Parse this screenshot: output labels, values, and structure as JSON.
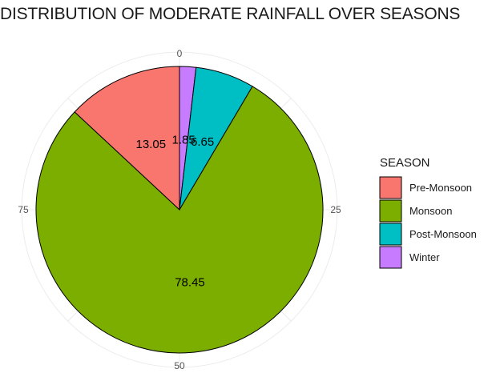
{
  "chart_data": {
    "type": "pie",
    "title": "DISTRIBUTION OF MODERATE RAINFALL OVER SEASONS",
    "categories": [
      "Pre-Monsoon",
      "Monsoon",
      "Post-Monsoon",
      "Winter"
    ],
    "values": [
      13.05,
      78.45,
      6.65,
      1.85
    ],
    "value_labels": [
      "13.05",
      "78.45",
      "6.65",
      "1.85"
    ],
    "colors": [
      "#F8766D",
      "#7CAE00",
      "#00BFC4",
      "#C77CFF"
    ],
    "slice_order_clockwise_from_top": [
      "Winter",
      "Post-Monsoon",
      "Monsoon",
      "Pre-Monsoon"
    ],
    "angular_axis": {
      "ticks": [
        0,
        25,
        50,
        75
      ],
      "range": [
        0,
        100
      ]
    },
    "legend": {
      "title": "SEASON",
      "position": "right",
      "entries": [
        "Pre-Monsoon",
        "Monsoon",
        "Post-Monsoon",
        "Winter"
      ]
    },
    "grid": true
  }
}
